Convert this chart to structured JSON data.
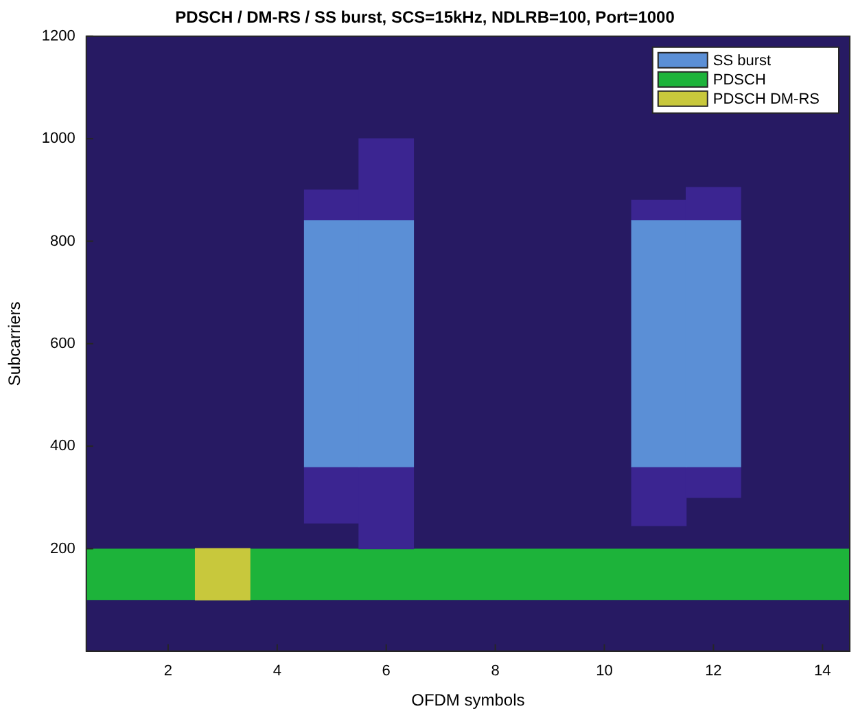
{
  "chart_data": {
    "type": "bar",
    "title": "PDSCH / DM-RS / SS burst, SCS=15kHz, NDLRB=100, Port=1000",
    "xlabel": "OFDM symbols",
    "ylabel": "Subcarriers",
    "categories": [
      null,
      "2",
      null,
      "4",
      null,
      "6",
      null,
      "8",
      null,
      "10",
      null,
      "12",
      null,
      "14"
    ],
    "series": [
      {
        "name": "SS burst",
        "color": "#5b8fd6",
        "values": [
          null,
          null,
          null,
          null,
          480,
          480,
          null,
          null,
          null,
          null,
          480,
          480,
          null,
          null
        ],
        "base": [
          null,
          null,
          null,
          null,
          360,
          360,
          null,
          null,
          null,
          null,
          360,
          360,
          null,
          null
        ]
      },
      {
        "name": "PDSCH DM-RS",
        "color": "#c8c83c",
        "values": [
          null,
          null,
          100,
          null,
          null,
          null,
          null,
          null,
          null,
          null,
          null,
          null,
          null,
          null
        ],
        "base": [
          null,
          null,
          100,
          null,
          null,
          null,
          null,
          null,
          null,
          null,
          null,
          null,
          null,
          null
        ]
      },
      {
        "color": "#3b2591",
        "values": [
          null,
          null,
          null,
          null,
          110,
          160,
          null,
          null,
          null,
          null,
          115,
          60,
          null,
          null
        ],
        "base": [
          null,
          null,
          null,
          null,
          250,
          200,
          null,
          null,
          null,
          null,
          245,
          300,
          null,
          null
        ]
      },
      {
        "color": "#3b2591",
        "values": [
          null,
          null,
          null,
          null,
          60,
          160,
          null,
          null,
          null,
          null,
          40,
          65,
          null,
          null
        ],
        "base": [
          null,
          null,
          null,
          null,
          840,
          840,
          null,
          null,
          null,
          null,
          840,
          840,
          null,
          null
        ]
      }
    ],
    "ylim": [
      0,
      1200
    ],
    "yticks": [
      {
        "value": 0,
        "label": null
      },
      200,
      400,
      600,
      800,
      1000,
      1200
    ],
    "bands": [
      {
        "axis": "y",
        "from": 100,
        "to": 200,
        "label": "PDSCH",
        "color": "#1db33a"
      }
    ],
    "legend": "top right"
  }
}
